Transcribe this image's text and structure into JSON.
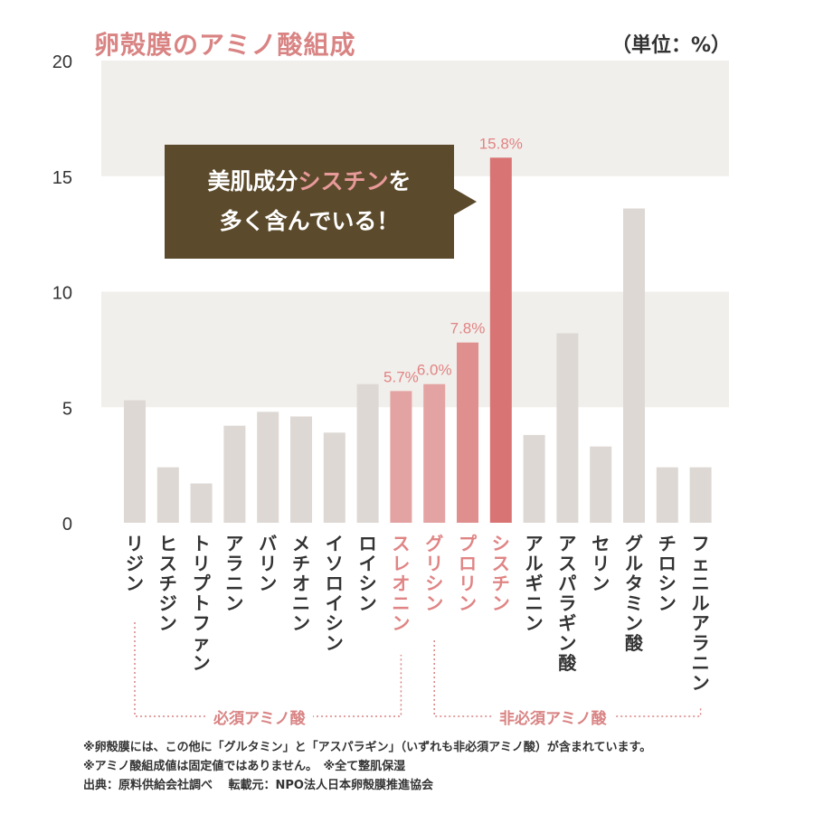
{
  "title": "卵殻膜のアミノ酸組成",
  "unit": "（単位：%）",
  "callout": {
    "line1_a": "美肌成分",
    "line1_b": "シスチン",
    "line1_c": "を",
    "line2": "多く含んでいる！"
  },
  "groups": {
    "essential": "必須アミノ酸",
    "nonessential": "非必須アミノ酸"
  },
  "notes": [
    "※卵殻膜には、この他に「グルタミン」と「アスパラギン」（いずれも非必須アミノ酸）が含まれています。",
    "※アミノ酸組成値は固定値ではありません。　※全て整肌保湿",
    "出典：原料供給会社調べ　 転載元：NPO法人日本卵殻膜推進協会"
  ],
  "colors": {
    "gray_bar": "#ddd8d4",
    "pink_light": "#e4a3a3",
    "pink_mid": "#e08f8f",
    "pink_dark": "#d97474",
    "label_pink": "#e08484",
    "band": "#f1efeb"
  },
  "chart_data": {
    "type": "bar",
    "ylim": [
      0,
      20
    ],
    "yticks": [
      0,
      5,
      10,
      15,
      20
    ],
    "categories": [
      "リジン",
      "ヒスチジン",
      "トリプトファン",
      "アラニン",
      "バリン",
      "メチオニン",
      "イソロイシン",
      "ロイシン",
      "スレオニン",
      "グリシン",
      "プロリン",
      "シスチン",
      "アルギニン",
      "アスパラギン酸",
      "セリン",
      "グルタミン酸",
      "チロシン",
      "フェニルアラニン"
    ],
    "values": [
      5.3,
      2.4,
      1.7,
      4.2,
      4.8,
      4.6,
      3.9,
      6.0,
      5.7,
      6.0,
      7.8,
      15.8,
      3.8,
      8.2,
      3.3,
      13.6,
      2.4,
      2.4
    ],
    "value_labels": [
      "",
      "",
      "",
      "",
      "",
      "",
      "",
      "",
      "5.7%",
      "6.0%",
      "7.8%",
      "15.8%",
      "",
      "",
      "",
      "",
      "",
      ""
    ],
    "highlight": [
      false,
      false,
      false,
      false,
      false,
      false,
      false,
      false,
      true,
      true,
      true,
      true,
      false,
      false,
      false,
      false,
      false,
      false
    ]
  }
}
